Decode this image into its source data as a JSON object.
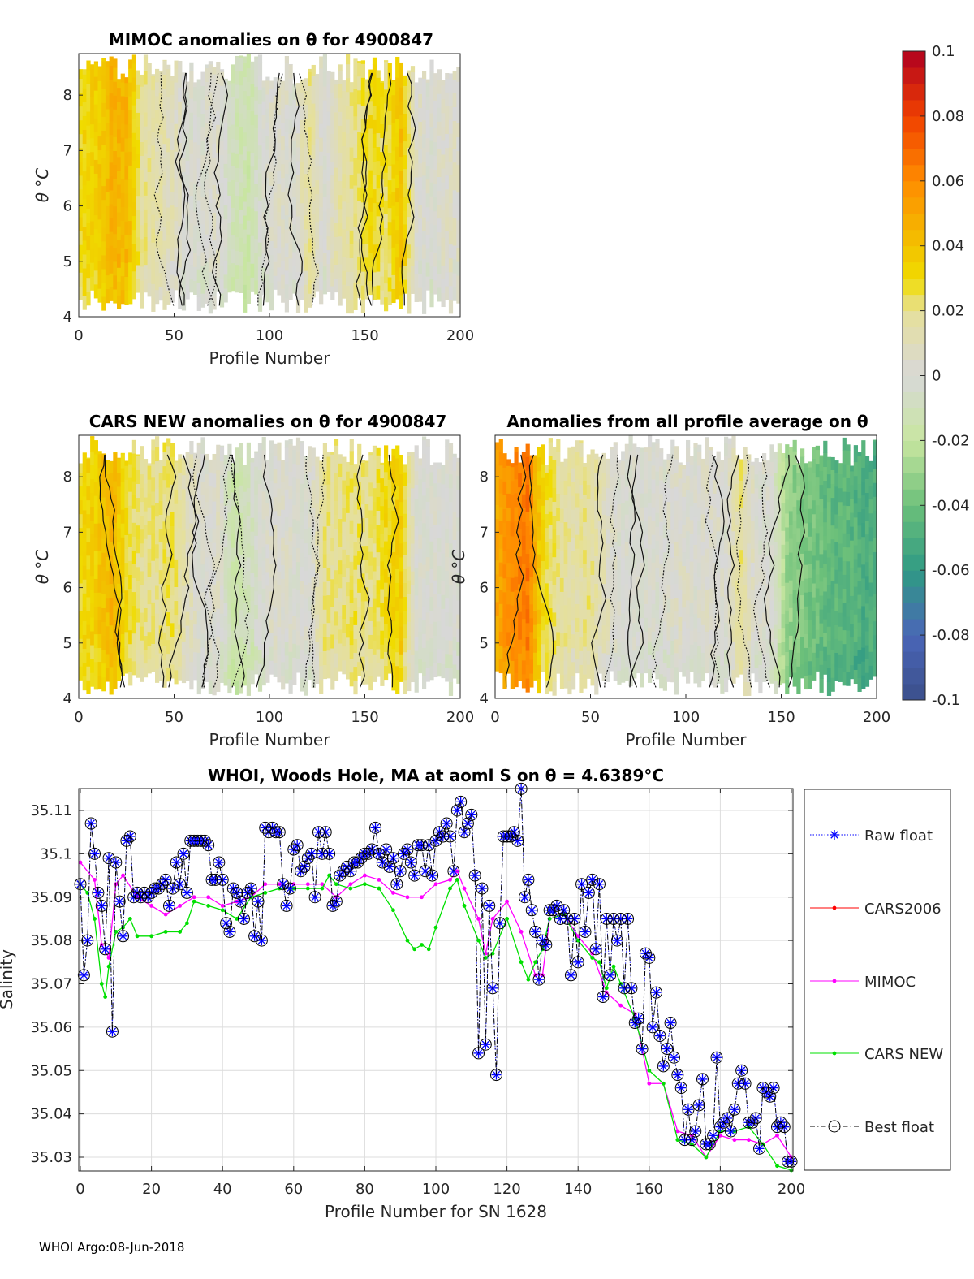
{
  "colorbar": {
    "ticks": [
      0.1,
      0.08,
      0.06,
      0.04,
      0.02,
      0,
      -0.02,
      -0.04,
      -0.06,
      -0.08,
      -0.1
    ],
    "labels": [
      "0.1",
      "0.08",
      "0.06",
      "0.04",
      "0.02",
      "0",
      "-0.02",
      "-0.04",
      "-0.06",
      "-0.08",
      "-0.1"
    ],
    "range": [
      -0.1,
      0.1
    ],
    "stops": [
      [
        -0.1,
        "#3b4f8a"
      ],
      [
        -0.08,
        "#4a66b8"
      ],
      [
        -0.06,
        "#2f9a84"
      ],
      [
        -0.04,
        "#6cc07a"
      ],
      [
        -0.02,
        "#c8e6a0"
      ],
      [
        0,
        "#d8d8d8"
      ],
      [
        0.02,
        "#e6e09a"
      ],
      [
        0.03,
        "#f0dc00"
      ],
      [
        0.04,
        "#f2c200"
      ],
      [
        0.06,
        "#ff8c00"
      ],
      [
        0.08,
        "#f04000"
      ],
      [
        0.1,
        "#b00020"
      ]
    ]
  },
  "footer": "WHOI Argo:08-Jun-2018",
  "chart_data": [
    {
      "type": "heatmap",
      "id": "mimoc",
      "title": "MIMOC anomalies on θ  for 4900847",
      "xlabel": "Profile Number",
      "ylabel": "θ °C",
      "xlim": [
        0,
        200
      ],
      "ylim": [
        4,
        8.75
      ],
      "xticks": [
        0,
        50,
        100,
        150,
        200
      ],
      "yticks": [
        4,
        5,
        6,
        7,
        8
      ],
      "column_profile_step": 8,
      "column_mean_anomaly": [
        0.03,
        0.035,
        0.045,
        0.045,
        0.02,
        0.015,
        0.01,
        0.0,
        0.0,
        0.005,
        -0.01,
        -0.015,
        0.0,
        0.005,
        0.0,
        0.02,
        0.0,
        0.015,
        0.02,
        0.03,
        0.025,
        0.04,
        0.005,
        0.0,
        0.005
      ]
    },
    {
      "type": "heatmap",
      "id": "carsnew",
      "title": "CARS NEW anomalies on θ for 4900847",
      "xlabel": "Profile Number",
      "ylabel": "θ °C",
      "xlim": [
        0,
        200
      ],
      "ylim": [
        4,
        8.75
      ],
      "xticks": [
        0,
        50,
        100,
        150,
        200
      ],
      "yticks": [
        4,
        5,
        6,
        7,
        8
      ],
      "column_profile_step": 8,
      "column_mean_anomaly": [
        0.03,
        0.035,
        0.045,
        0.03,
        0.02,
        0.02,
        0.025,
        0.01,
        0.0,
        0.005,
        -0.015,
        -0.01,
        0.0,
        0.005,
        0.0,
        0.0,
        0.02,
        0.02,
        0.025,
        0.02,
        0.03,
        0.035,
        0.0,
        0.0,
        0.0
      ]
    },
    {
      "type": "heatmap",
      "id": "allavg",
      "title": "Anomalies from all profile average on θ",
      "xlabel": "Profile Number",
      "ylabel": "θ °C",
      "xlim": [
        0,
        200
      ],
      "ylim": [
        4,
        8.75
      ],
      "xticks": [
        0,
        50,
        100,
        150,
        200
      ],
      "yticks": [
        4,
        5,
        6,
        7,
        8
      ],
      "column_profile_step": 8,
      "column_mean_anomaly": [
        0.05,
        0.06,
        0.065,
        0.03,
        0.02,
        0.015,
        0.02,
        0.01,
        0.0,
        0.0,
        0.0,
        0.0,
        0.005,
        0.0,
        0.005,
        0.0,
        0.02,
        0.0,
        0.0,
        -0.03,
        -0.035,
        -0.04,
        -0.045,
        -0.045,
        -0.05
      ]
    },
    {
      "type": "line",
      "id": "salinity",
      "title": "WHOI, Woods Hole, MA at aoml S on θ = 4.6389°C",
      "xlabel": "Profile Number for SN 1628",
      "ylabel": "Salinity",
      "xlim": [
        0,
        200
      ],
      "ylim": [
        35.0268,
        35.115
      ],
      "xticks": [
        0,
        20,
        40,
        60,
        80,
        100,
        120,
        140,
        160,
        180,
        200
      ],
      "yticks": [
        35.03,
        35.04,
        35.05,
        35.06,
        35.07,
        35.08,
        35.09,
        35.1,
        35.11
      ],
      "ytick_labels": [
        "35.03",
        "35.04",
        "35.05",
        "35.06",
        "35.07",
        "35.08",
        "35.09",
        "35.1",
        "35.11"
      ],
      "grid": true,
      "legend_placement": "outside-right",
      "series": [
        {
          "name": "Raw float",
          "color": "#0000ff",
          "style": "dotted-star"
        },
        {
          "name": "CARS2006",
          "color": "#ff0000",
          "style": "solid-dot",
          "x": [],
          "y": []
        },
        {
          "name": "MIMOC",
          "color": "#ff00ff",
          "style": "solid-dot",
          "x": [
            0,
            4,
            6,
            8,
            10,
            12,
            16,
            20,
            24,
            28,
            32,
            36,
            40,
            44,
            48,
            52,
            56,
            60,
            64,
            68,
            72,
            76,
            80,
            84,
            88,
            92,
            96,
            100,
            104,
            106,
            108,
            112,
            114,
            116,
            120,
            124,
            128,
            130,
            132,
            136,
            140,
            144,
            148,
            152,
            156,
            160,
            164,
            168,
            172,
            176,
            180,
            184,
            188,
            192,
            196,
            200
          ],
          "y": [
            35.098,
            35.094,
            35.079,
            35.076,
            35.093,
            35.095,
            35.09,
            35.088,
            35.086,
            35.088,
            35.09,
            35.09,
            35.088,
            35.089,
            35.09,
            35.093,
            35.093,
            35.093,
            35.093,
            35.093,
            35.09,
            35.093,
            35.095,
            35.094,
            35.091,
            35.09,
            35.09,
            35.093,
            35.094,
            35.096,
            35.092,
            35.085,
            35.077,
            35.085,
            35.089,
            35.082,
            35.072,
            35.072,
            35.085,
            35.086,
            35.081,
            35.077,
            35.068,
            35.065,
            35.063,
            35.047,
            35.047,
            35.036,
            35.035,
            35.03,
            35.035,
            35.034,
            35.034,
            35.033,
            35.035,
            35.03
          ]
        },
        {
          "name": "CARS NEW",
          "color": "#00e000",
          "style": "solid-dot",
          "x": [
            0,
            2,
            4,
            6,
            7,
            8,
            10,
            12,
            14,
            16,
            20,
            24,
            28,
            30,
            32,
            36,
            40,
            44,
            48,
            52,
            56,
            60,
            64,
            68,
            70,
            72,
            76,
            80,
            84,
            88,
            92,
            94,
            96,
            98,
            100,
            104,
            106,
            108,
            112,
            114,
            116,
            120,
            124,
            126,
            128,
            130,
            132,
            136,
            140,
            144,
            146,
            148,
            150,
            152,
            156,
            160,
            164,
            168,
            172,
            176,
            180,
            184,
            188,
            192,
            196,
            200
          ],
          "y": [
            35.093,
            35.091,
            35.085,
            35.07,
            35.067,
            35.074,
            35.082,
            35.083,
            35.085,
            35.081,
            35.081,
            35.082,
            35.082,
            35.084,
            35.089,
            35.088,
            35.087,
            35.085,
            35.09,
            35.091,
            35.092,
            35.092,
            35.092,
            35.092,
            35.095,
            35.093,
            35.092,
            35.093,
            35.092,
            35.087,
            35.08,
            35.078,
            35.079,
            35.078,
            35.083,
            35.092,
            35.094,
            35.088,
            35.08,
            35.076,
            35.077,
            35.085,
            35.075,
            35.071,
            35.075,
            35.078,
            35.085,
            35.086,
            35.08,
            35.076,
            35.075,
            35.069,
            35.074,
            35.07,
            35.062,
            35.05,
            35.047,
            35.034,
            35.033,
            35.03,
            35.036,
            35.036,
            35.037,
            35.033,
            35.028,
            35.027
          ]
        },
        {
          "name": "Best float",
          "color": "#000000",
          "style": "dashdot-circle",
          "y": [
            35.093,
            35.072,
            35.08,
            35.107,
            35.1,
            35.091,
            35.088,
            35.078,
            35.099,
            35.059,
            35.098,
            35.089,
            35.081,
            35.103,
            35.104,
            35.09,
            35.091,
            35.09,
            35.091,
            35.09,
            35.091,
            35.092,
            35.092,
            35.093,
            35.094,
            35.088,
            35.092,
            35.098,
            35.093,
            35.1,
            35.091,
            35.103,
            35.103,
            35.103,
            35.103,
            35.103,
            35.102,
            35.094,
            35.094,
            35.098,
            35.094,
            35.084,
            35.082,
            35.092,
            35.091,
            35.089,
            35.085,
            35.091,
            35.092,
            35.081,
            35.089,
            35.08,
            35.106,
            35.105,
            35.106,
            35.105,
            35.105,
            35.093,
            35.088,
            35.092,
            35.101,
            35.102,
            35.096,
            35.097,
            35.099,
            35.1,
            35.09,
            35.105,
            35.1,
            35.105,
            35.1,
            35.088,
            35.089,
            35.095,
            35.096,
            35.097,
            35.096,
            35.098,
            35.098,
            35.099,
            35.1,
            35.1,
            35.101,
            35.106,
            35.1,
            35.098,
            35.101,
            35.097,
            35.099,
            35.093,
            35.096,
            35.1,
            35.101,
            35.098,
            35.095,
            35.102,
            35.102,
            35.096,
            35.102,
            35.095,
            35.103,
            35.105,
            35.104,
            35.107,
            35.104,
            35.096,
            35.11,
            35.112,
            35.105,
            35.107,
            35.109,
            35.095,
            35.054,
            35.092,
            35.056,
            35.088,
            35.069,
            35.049,
            35.084,
            35.104,
            35.104,
            35.104,
            35.105,
            35.103,
            35.115,
            35.09,
            35.094,
            35.087,
            35.082,
            35.071,
            35.08,
            35.079,
            35.087,
            35.087,
            35.088,
            35.085,
            35.087,
            35.085,
            35.072,
            35.085,
            35.075,
            35.093,
            35.082,
            35.091,
            35.094,
            35.078,
            35.093,
            35.067,
            35.085,
            35.072,
            35.085,
            35.08,
            35.085,
            35.069,
            35.085,
            35.069,
            35.061,
            35.062,
            35.055,
            35.077,
            35.076,
            35.06,
            35.068,
            35.058,
            35.051,
            35.055,
            35.061,
            35.053,
            35.049,
            35.046,
            35.034,
            35.041,
            35.034,
            35.036,
            35.042,
            35.048,
            35.033,
            35.033,
            35.035,
            35.053,
            35.037,
            35.038,
            35.039,
            35.036,
            35.041,
            35.047,
            35.05,
            35.047,
            35.038,
            35.038,
            35.039,
            35.032,
            35.046,
            35.045,
            35.044,
            35.046,
            35.037,
            35.038,
            35.037,
            35.029,
            35.029
          ]
        }
      ]
    }
  ]
}
